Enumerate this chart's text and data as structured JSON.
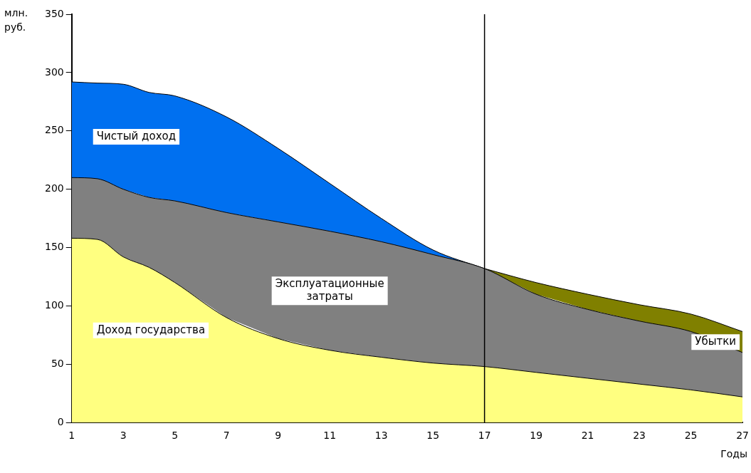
{
  "chart_data": {
    "type": "area",
    "stacked": true,
    "xlabel": "Годы",
    "ylabel": "млн. руб.",
    "x": [
      1,
      2,
      3,
      4,
      5,
      7,
      9,
      11,
      13,
      15,
      17,
      19,
      21,
      23,
      25,
      27
    ],
    "xlim": [
      1,
      27
    ],
    "xticks": [
      1,
      3,
      5,
      7,
      9,
      11,
      13,
      15,
      17,
      19,
      21,
      23,
      25,
      27
    ],
    "ylim": [
      0,
      350
    ],
    "yticks": [
      0,
      50,
      100,
      150,
      200,
      250,
      300,
      350
    ],
    "grid": false,
    "legend": false,
    "series": [
      {
        "name": "Доход государства",
        "color": "#ffff80",
        "values": [
          158,
          157,
          142,
          133,
          120,
          90,
          72,
          62,
          56,
          51,
          48,
          43,
          38,
          33,
          28,
          22
        ]
      },
      {
        "name": "Эксплуатационные затраты",
        "color": "#808080",
        "values": [
          52,
          52,
          58,
          60,
          70,
          90,
          100,
          102,
          99,
          93,
          84,
          67,
          59,
          54,
          50,
          38
        ]
      },
      {
        "name": "Чистый доход",
        "color": "#0070f0",
        "values": [
          82,
          82,
          90,
          90,
          90,
          82,
          63,
          41,
          20,
          4,
          0,
          null,
          null,
          null,
          null,
          null
        ]
      },
      {
        "name": "Убытки",
        "color": "#808000",
        "values": [
          null,
          null,
          null,
          null,
          null,
          null,
          null,
          null,
          null,
          null,
          0,
          10,
          13,
          14,
          15,
          18
        ]
      }
    ],
    "ref_lines": [
      {
        "axis": "x",
        "value": 17,
        "color": "#000000"
      }
    ]
  }
}
